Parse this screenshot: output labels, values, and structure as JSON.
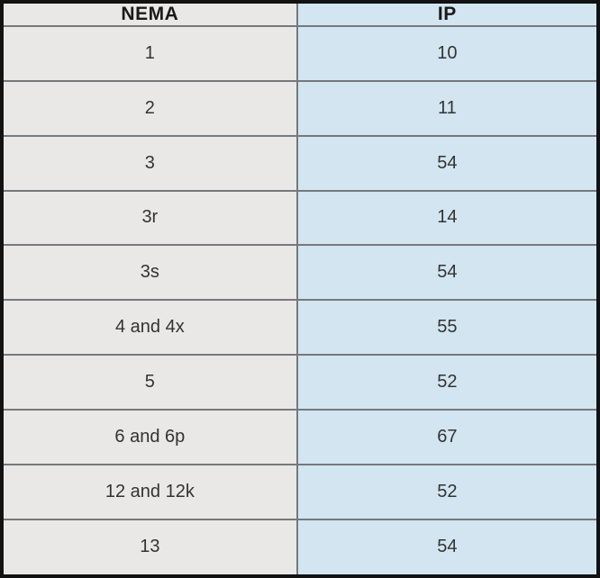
{
  "table": {
    "columns": [
      {
        "label": "NEMA"
      },
      {
        "label": "IP"
      }
    ],
    "rows": [
      {
        "nema": "1",
        "ip": "10"
      },
      {
        "nema": "2",
        "ip": "11"
      },
      {
        "nema": "3",
        "ip": "54"
      },
      {
        "nema": "3r",
        "ip": "14"
      },
      {
        "nema": "3s",
        "ip": "54"
      },
      {
        "nema": "4 and 4x",
        "ip": "55"
      },
      {
        "nema": "5",
        "ip": "52"
      },
      {
        "nema": "6 and 6p",
        "ip": "67"
      },
      {
        "nema": "12 and 12k",
        "ip": "52"
      },
      {
        "nema": "13",
        "ip": "54"
      }
    ]
  },
  "colors": {
    "nema_column_bg": "#e9e8e6",
    "ip_column_bg": "#d2e5f0",
    "gridline": "#75797d",
    "outer_border": "#121212",
    "header_text": "#1a1a1a",
    "cell_text": "#333333"
  },
  "chart_data": {
    "type": "table",
    "title": "",
    "columns": [
      "NEMA",
      "IP"
    ],
    "rows": [
      [
        "1",
        "10"
      ],
      [
        "2",
        "11"
      ],
      [
        "3",
        "54"
      ],
      [
        "3r",
        "14"
      ],
      [
        "3s",
        "54"
      ],
      [
        "4 and 4x",
        "55"
      ],
      [
        "5",
        "52"
      ],
      [
        "6 and 6p",
        "67"
      ],
      [
        "12 and 12k",
        "52"
      ],
      [
        "13",
        "54"
      ]
    ]
  }
}
